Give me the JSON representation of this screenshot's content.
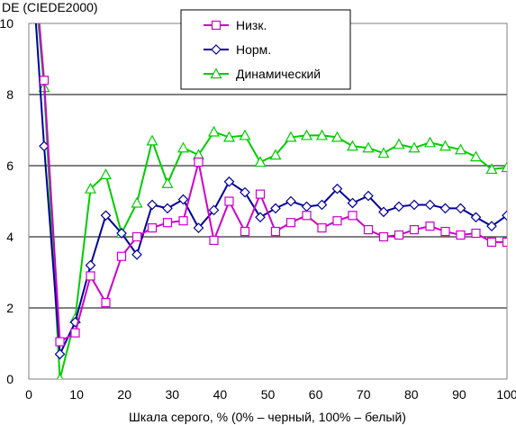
{
  "chart_data": {
    "type": "line",
    "title": "",
    "ylabel": "DE (CIEDE2000)",
    "xlabel": "Шкала серого, % (0% – черный, 100% – белый)",
    "xlim": [
      0,
      100
    ],
    "ylim": [
      0,
      10
    ],
    "x_ticks": [
      0,
      10,
      20,
      30,
      40,
      50,
      60,
      70,
      80,
      90,
      100
    ],
    "y_ticks": [
      0,
      2,
      4,
      6,
      8,
      10
    ],
    "grid": "horizontal",
    "legend_position": "top-center",
    "x": [
      0,
      3.2,
      6.5,
      9.7,
      12.9,
      16.1,
      19.4,
      22.6,
      25.8,
      29.0,
      32.3,
      35.5,
      38.7,
      41.9,
      45.2,
      48.4,
      51.6,
      54.8,
      58.1,
      61.3,
      64.5,
      67.7,
      71.0,
      74.2,
      77.4,
      80.6,
      83.9,
      87.1,
      90.3,
      93.5,
      96.8,
      100
    ],
    "series": [
      {
        "name": "Низк.",
        "color": "#cc00cc",
        "marker": "square",
        "values": [
          13.5,
          8.4,
          1.05,
          1.3,
          2.9,
          2.15,
          3.45,
          4.0,
          4.25,
          4.4,
          4.45,
          6.1,
          3.9,
          5.0,
          4.15,
          5.2,
          4.15,
          4.4,
          4.6,
          4.25,
          4.45,
          4.6,
          4.2,
          4.0,
          4.05,
          4.2,
          4.3,
          4.15,
          4.05,
          4.1,
          3.85,
          3.85
        ]
      },
      {
        "name": "Норм.",
        "color": "#000099",
        "marker": "diamond",
        "values": [
          13.0,
          6.55,
          0.7,
          1.6,
          3.2,
          4.6,
          4.1,
          3.5,
          4.9,
          4.8,
          5.05,
          4.25,
          4.75,
          5.55,
          5.25,
          4.55,
          4.8,
          5.0,
          4.85,
          4.9,
          5.35,
          4.95,
          5.15,
          4.7,
          4.85,
          4.9,
          4.9,
          4.8,
          4.8,
          4.55,
          4.3,
          4.6
        ]
      },
      {
        "name": "Динамический",
        "color": "#00cc00",
        "marker": "triangle",
        "values": [
          13.0,
          8.2,
          0.0,
          1.7,
          5.35,
          5.75,
          4.1,
          4.95,
          6.7,
          5.5,
          6.5,
          6.3,
          6.95,
          6.8,
          6.85,
          6.1,
          6.3,
          6.8,
          6.85,
          6.85,
          6.8,
          6.55,
          6.5,
          6.35,
          6.6,
          6.5,
          6.65,
          6.55,
          6.45,
          6.25,
          5.9,
          5.95
        ]
      }
    ]
  }
}
